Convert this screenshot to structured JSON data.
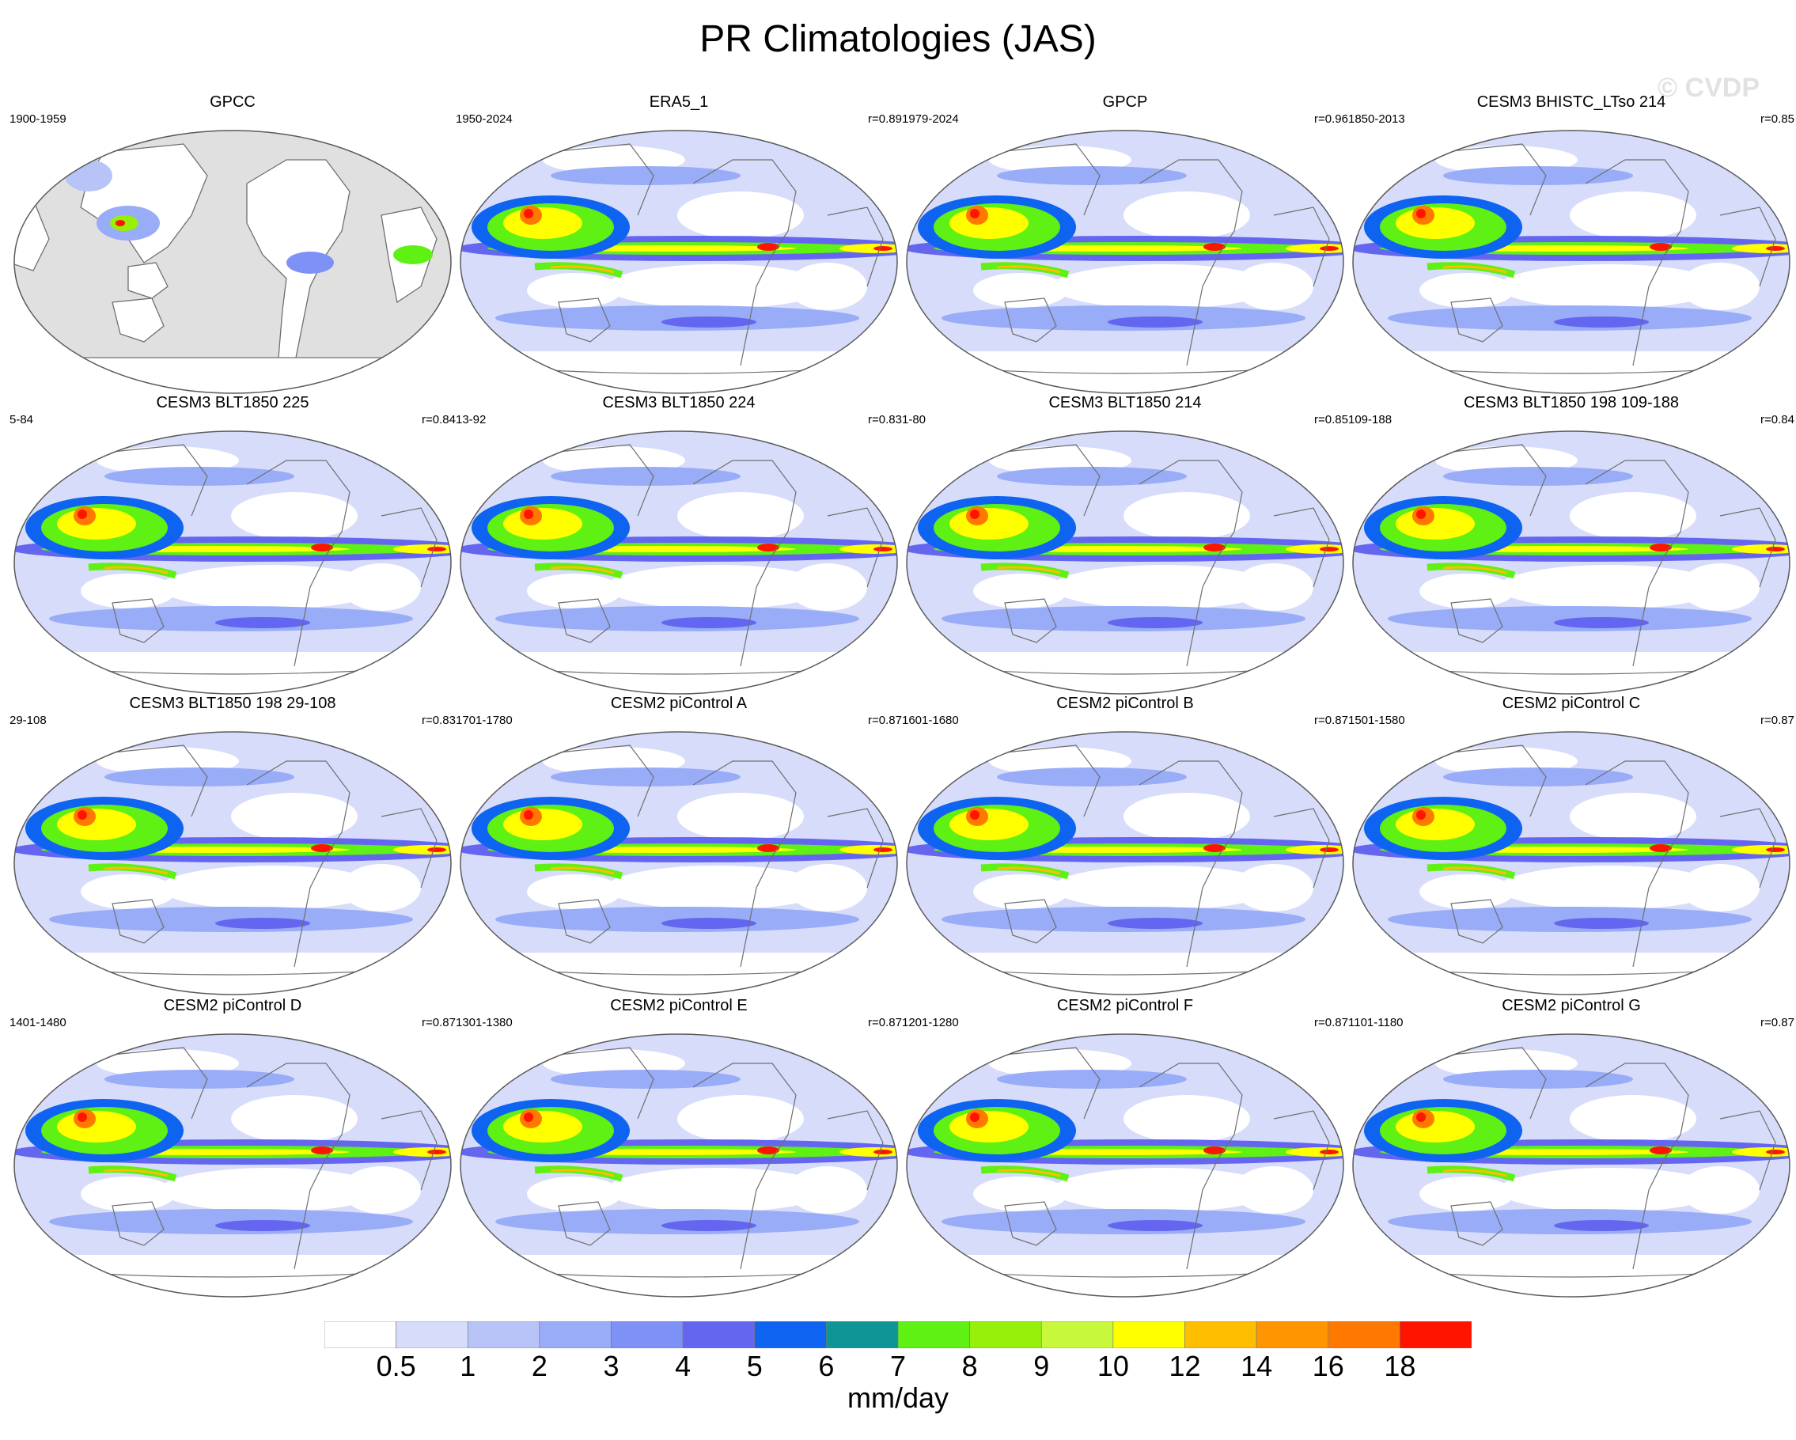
{
  "title": "PR Climatologies (JAS)",
  "watermark": "© CVDP",
  "panels": [
    {
      "title": "GPCC",
      "years": "1900-1959",
      "r": "",
      "style": "land"
    },
    {
      "title": "ERA5_1",
      "years": "1950-2024",
      "r": "r=0.89",
      "style": "obs"
    },
    {
      "title": "GPCP",
      "years": "1979-2024",
      "r": "r=0.96",
      "style": "obs"
    },
    {
      "title": "CESM3 BHISTC_LTso 214",
      "years": "1850-2013",
      "r": "r=0.85",
      "style": "model"
    },
    {
      "title": "CESM3 BLT1850 225",
      "years": "5-84",
      "r": "r=0.84",
      "style": "model"
    },
    {
      "title": "CESM3 BLT1850 224",
      "years": "13-92",
      "r": "r=0.83",
      "style": "model"
    },
    {
      "title": "CESM3 BLT1850 214",
      "years": "1-80",
      "r": "r=0.85",
      "style": "model"
    },
    {
      "title": "CESM3 BLT1850 198 109-188",
      "years": "109-188",
      "r": "r=0.84",
      "style": "model"
    },
    {
      "title": "CESM3 BLT1850 198 29-108",
      "years": "29-108",
      "r": "r=0.83",
      "style": "model"
    },
    {
      "title": "CESM2 piControl A",
      "years": "1701-1780",
      "r": "r=0.87",
      "style": "model"
    },
    {
      "title": "CESM2 piControl B",
      "years": "1601-1680",
      "r": "r=0.87",
      "style": "model"
    },
    {
      "title": "CESM2 piControl C",
      "years": "1501-1580",
      "r": "r=0.87",
      "style": "model"
    },
    {
      "title": "CESM2 piControl D",
      "years": "1401-1480",
      "r": "r=0.87",
      "style": "model"
    },
    {
      "title": "CESM2 piControl E",
      "years": "1301-1380",
      "r": "r=0.87",
      "style": "model"
    },
    {
      "title": "CESM2 piControl F",
      "years": "1201-1280",
      "r": "r=0.87",
      "style": "model"
    },
    {
      "title": "CESM2 piControl G",
      "years": "1101-1180",
      "r": "r=0.87",
      "style": "model"
    }
  ],
  "colorbar": {
    "units": "mm/day",
    "levels": [
      "0.5",
      "1",
      "2",
      "3",
      "4",
      "5",
      "6",
      "7",
      "8",
      "9",
      "10",
      "12",
      "14",
      "16",
      "18"
    ],
    "colors": [
      "#ffffff",
      "#d7dcfa",
      "#b8c4f8",
      "#98acf8",
      "#7d91f6",
      "#6466f0",
      "#0e64f0",
      "#0e9696",
      "#5ff014",
      "#96f00a",
      "#c8f83c",
      "#ffff00",
      "#ffbe00",
      "#ff9600",
      "#ff7800",
      "#ff1400"
    ]
  }
}
